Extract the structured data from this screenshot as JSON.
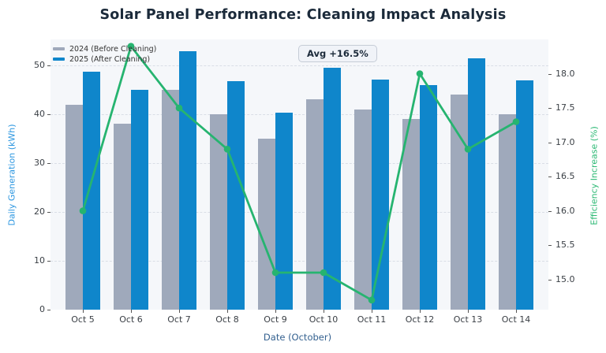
{
  "title": "Solar Panel Performance: Cleaning Impact Analysis",
  "colors": {
    "bar_2024": "#9fa9bb",
    "bar_2025": "#0f86cb",
    "line_efficiency": "#26b470",
    "plot_background": "#f5f7fa",
    "grid": "#d9dee6",
    "left_axis_label": "#2b96e0",
    "right_axis_label": "#2ab873",
    "x_axis_label": "#33608f",
    "tick_text": "#3a3f45",
    "title_text": "#1b2a3a"
  },
  "chart_data": {
    "type": "bar",
    "title": "Solar Panel Performance: Cleaning Impact Analysis",
    "categories": [
      "Oct 5",
      "Oct 6",
      "Oct 7",
      "Oct 8",
      "Oct 9",
      "Oct 10",
      "Oct 11",
      "Oct 12",
      "Oct 13",
      "Oct 14"
    ],
    "series": [
      {
        "name": "2024 (Before Cleaning)",
        "type": "bar",
        "axis": "left",
        "color": "#9fa9bb",
        "values": [
          42,
          38,
          45,
          40,
          35,
          43,
          41,
          39,
          44,
          40
        ]
      },
      {
        "name": "2025 (After Cleaning)",
        "type": "bar",
        "axis": "left",
        "color": "#0f86cb",
        "values": [
          48.7,
          45.0,
          52.9,
          46.8,
          40.3,
          49.5,
          47.0,
          46.0,
          51.4,
          46.9
        ]
      },
      {
        "name": "Efficiency Increase (%)",
        "type": "line",
        "axis": "right",
        "color": "#26b470",
        "values": [
          16.0,
          18.4,
          17.5,
          16.9,
          15.1,
          15.1,
          14.7,
          18.0,
          16.9,
          17.3
        ]
      }
    ],
    "xlabel": "Date (October)",
    "ylabel_left": "Daily Generation (kWh)",
    "ylabel_right": "Efficiency Increase (%)",
    "ylim_left": [
      0,
      55.3
    ],
    "ylim_right": [
      14.56,
      18.5
    ],
    "yticks_left": [
      0,
      10,
      20,
      30,
      40,
      50
    ],
    "yticks_right": [
      "15.0",
      "15.5",
      "16.0",
      "16.5",
      "17.0",
      "17.5",
      "18.0"
    ],
    "yticks_right_values": [
      15.0,
      15.5,
      16.0,
      16.5,
      17.0,
      17.5,
      18.0
    ],
    "grid": "horizontal dashed on left-axis ticks",
    "legend_position": "upper left",
    "annotation_label": "Avg +16.5%"
  }
}
